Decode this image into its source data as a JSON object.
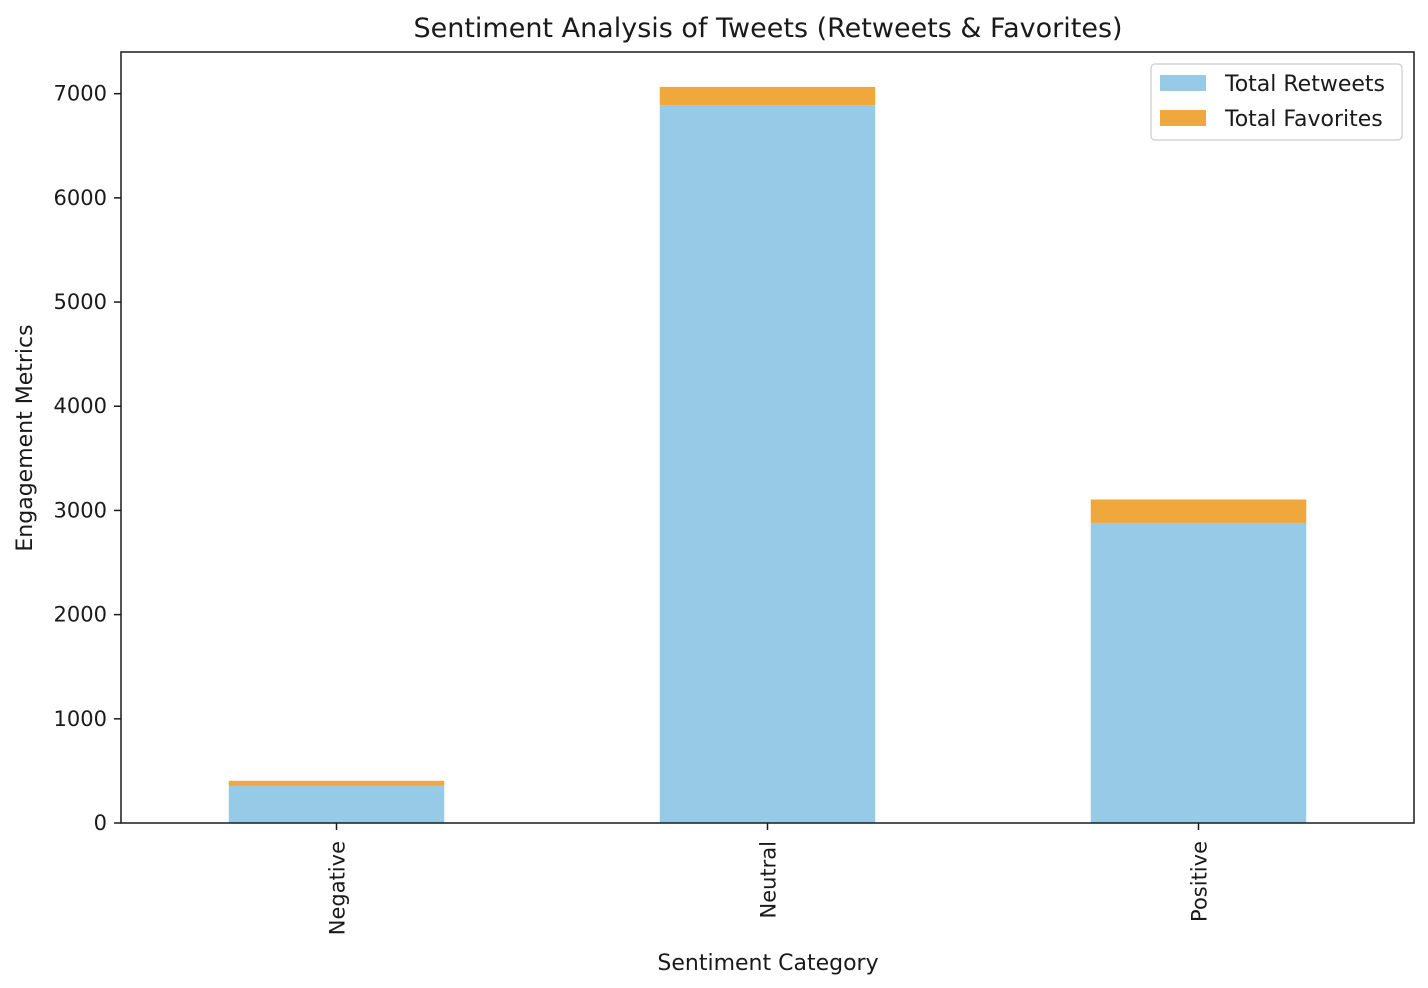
{
  "chart_data": {
    "type": "bar",
    "stacked": true,
    "title": "Sentiment Analysis of Tweets (Retweets & Favorites)",
    "xlabel": "Sentiment Category",
    "ylabel": "Engagement Metrics",
    "categories": [
      "Negative",
      "Neutral",
      "Positive"
    ],
    "series": [
      {
        "name": "Total Retweets",
        "values": [
          360,
          6890,
          2880
        ],
        "color": "#97cae6"
      },
      {
        "name": "Total Favorites",
        "values": [
          45,
          175,
          225
        ],
        "color": "#f0a73c"
      }
    ],
    "ylim": [
      0,
      7400
    ],
    "yticks": [
      0,
      1000,
      2000,
      3000,
      4000,
      5000,
      6000,
      7000
    ],
    "grid": false,
    "legend": "top-right"
  }
}
